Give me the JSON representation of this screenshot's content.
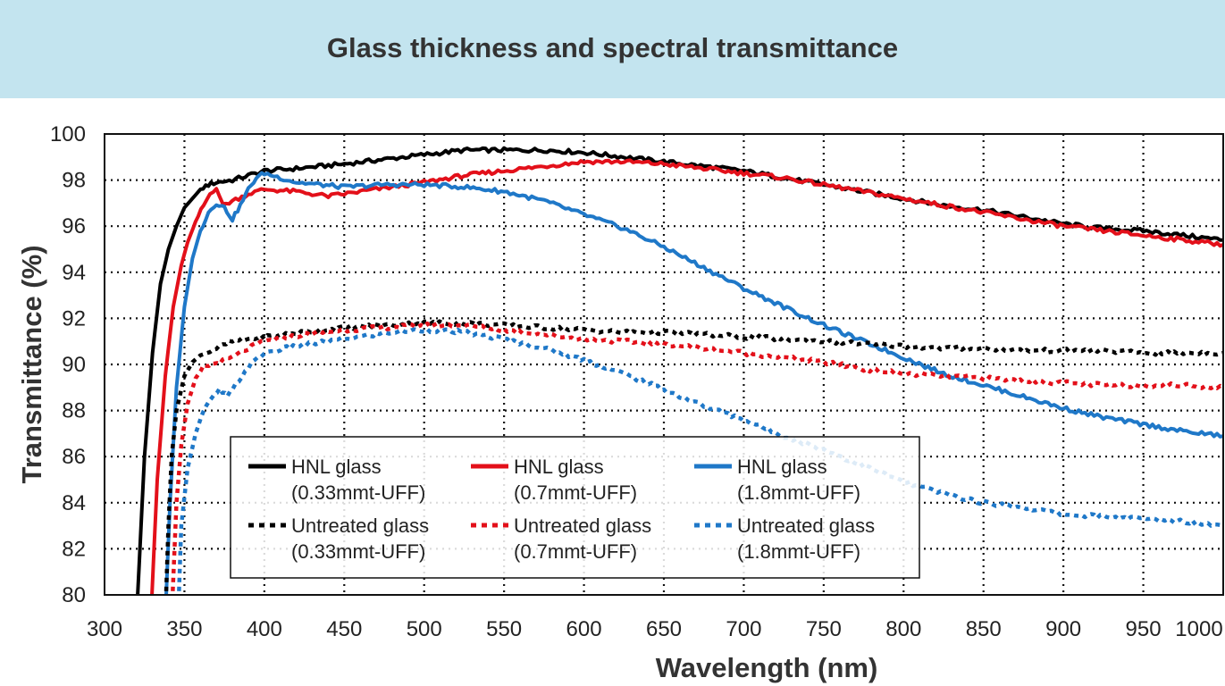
{
  "header": {
    "title": "Glass thickness and spectral transmittance"
  },
  "chart_data": {
    "type": "line",
    "title": "Glass thickness and spectral transmittance",
    "xlabel": "Wavelength (nm)",
    "ylabel": "Transmittance (%)",
    "xlim": [
      300,
      1000
    ],
    "ylim": [
      80,
      100
    ],
    "x_ticks": [
      300,
      350,
      400,
      450,
      500,
      550,
      600,
      650,
      700,
      750,
      800,
      850,
      900,
      950,
      1000
    ],
    "y_ticks": [
      80,
      82,
      84,
      86,
      88,
      90,
      92,
      94,
      96,
      98,
      100
    ],
    "grid": true,
    "legend_position": "lower-center",
    "series": [
      {
        "name": "HNL glass",
        "name2": "(0.33mmt-UFF)",
        "color": "#000000",
        "style": "solid",
        "points": [
          [
            320,
            79
          ],
          [
            325,
            86
          ],
          [
            330,
            90.5
          ],
          [
            335,
            93.5
          ],
          [
            340,
            95
          ],
          [
            345,
            96
          ],
          [
            350,
            96.8
          ],
          [
            355,
            97.2
          ],
          [
            360,
            97.6
          ],
          [
            365,
            97.8
          ],
          [
            370,
            97.9
          ],
          [
            380,
            98
          ],
          [
            390,
            98.2
          ],
          [
            400,
            98.4
          ],
          [
            420,
            98.5
          ],
          [
            450,
            98.7
          ],
          [
            475,
            98.9
          ],
          [
            500,
            99.1
          ],
          [
            525,
            99.3
          ],
          [
            550,
            99.3
          ],
          [
            575,
            99.3
          ],
          [
            600,
            99.2
          ],
          [
            625,
            99
          ],
          [
            650,
            98.8
          ],
          [
            675,
            98.6
          ],
          [
            700,
            98.4
          ],
          [
            725,
            98.1
          ],
          [
            750,
            97.8
          ],
          [
            775,
            97.5
          ],
          [
            800,
            97.2
          ],
          [
            825,
            96.9
          ],
          [
            850,
            96.7
          ],
          [
            875,
            96.4
          ],
          [
            900,
            96.1
          ],
          [
            925,
            95.9
          ],
          [
            950,
            95.8
          ],
          [
            975,
            95.6
          ],
          [
            1000,
            95.4
          ]
        ]
      },
      {
        "name": "HNL glass",
        "name2": "(0.7mmt-UFF)",
        "color": "#e3101a",
        "style": "solid",
        "points": [
          [
            329,
            79
          ],
          [
            333,
            85
          ],
          [
            338,
            89.5
          ],
          [
            343,
            92.5
          ],
          [
            348,
            94.3
          ],
          [
            352,
            95.3
          ],
          [
            357,
            96.2
          ],
          [
            362,
            96.9
          ],
          [
            366,
            97.4
          ],
          [
            370,
            97.7
          ],
          [
            374,
            96.9
          ],
          [
            380,
            97.1
          ],
          [
            390,
            97.4
          ],
          [
            400,
            97.6
          ],
          [
            420,
            97.5
          ],
          [
            440,
            97.3
          ],
          [
            460,
            97.5
          ],
          [
            480,
            97.7
          ],
          [
            500,
            97.9
          ],
          [
            525,
            98.2
          ],
          [
            550,
            98.4
          ],
          [
            575,
            98.6
          ],
          [
            600,
            98.8
          ],
          [
            625,
            98.8
          ],
          [
            650,
            98.7
          ],
          [
            675,
            98.5
          ],
          [
            700,
            98.3
          ],
          [
            725,
            98.1
          ],
          [
            750,
            97.8
          ],
          [
            775,
            97.5
          ],
          [
            800,
            97.2
          ],
          [
            825,
            96.9
          ],
          [
            850,
            96.6
          ],
          [
            875,
            96.3
          ],
          [
            900,
            96
          ],
          [
            925,
            95.8
          ],
          [
            950,
            95.6
          ],
          [
            975,
            95.4
          ],
          [
            1000,
            95.2
          ]
        ]
      },
      {
        "name": "HNL glass",
        "name2": "(1.8mmt-UFF)",
        "color": "#1f78c8",
        "style": "solid",
        "points": [
          [
            338,
            79
          ],
          [
            341,
            84
          ],
          [
            345,
            89
          ],
          [
            350,
            92.5
          ],
          [
            355,
            94.6
          ],
          [
            360,
            95.8
          ],
          [
            365,
            96.6
          ],
          [
            370,
            97
          ],
          [
            375,
            96.8
          ],
          [
            380,
            96.3
          ],
          [
            385,
            96.9
          ],
          [
            390,
            97.6
          ],
          [
            395,
            98.1
          ],
          [
            400,
            98.3
          ],
          [
            410,
            98.1
          ],
          [
            420,
            97.9
          ],
          [
            435,
            97.8
          ],
          [
            450,
            97.7
          ],
          [
            475,
            97.8
          ],
          [
            500,
            97.8
          ],
          [
            525,
            97.7
          ],
          [
            550,
            97.5
          ],
          [
            575,
            97.1
          ],
          [
            600,
            96.5
          ],
          [
            625,
            95.9
          ],
          [
            650,
            95.1
          ],
          [
            675,
            94.2
          ],
          [
            700,
            93.3
          ],
          [
            725,
            92.5
          ],
          [
            750,
            91.7
          ],
          [
            775,
            91
          ],
          [
            800,
            90.3
          ],
          [
            825,
            89.6
          ],
          [
            850,
            89.1
          ],
          [
            875,
            88.6
          ],
          [
            900,
            88.1
          ],
          [
            925,
            87.7
          ],
          [
            950,
            87.4
          ],
          [
            975,
            87.1
          ],
          [
            1000,
            86.9
          ]
        ]
      },
      {
        "name": "Untreated glass",
        "name2": "(0.33mmt-UFF)",
        "color": "#000000",
        "style": "dotted",
        "points": [
          [
            338,
            79
          ],
          [
            340,
            83
          ],
          [
            342,
            86
          ],
          [
            345,
            88
          ],
          [
            350,
            89.5
          ],
          [
            355,
            90.1
          ],
          [
            360,
            90.4
          ],
          [
            370,
            90.7
          ],
          [
            380,
            91
          ],
          [
            390,
            91.1
          ],
          [
            400,
            91.2
          ],
          [
            425,
            91.4
          ],
          [
            450,
            91.6
          ],
          [
            475,
            91.7
          ],
          [
            500,
            91.8
          ],
          [
            525,
            91.8
          ],
          [
            550,
            91.7
          ],
          [
            575,
            91.6
          ],
          [
            600,
            91.5
          ],
          [
            625,
            91.4
          ],
          [
            650,
            91.4
          ],
          [
            675,
            91.3
          ],
          [
            700,
            91.2
          ],
          [
            725,
            91.1
          ],
          [
            750,
            91
          ],
          [
            775,
            90.9
          ],
          [
            800,
            90.8
          ],
          [
            825,
            90.7
          ],
          [
            850,
            90.7
          ],
          [
            875,
            90.6
          ],
          [
            900,
            90.6
          ],
          [
            925,
            90.6
          ],
          [
            950,
            90.5
          ],
          [
            975,
            90.5
          ],
          [
            1000,
            90.5
          ]
        ]
      },
      {
        "name": "Untreated glass",
        "name2": "(0.7mmt-UFF)",
        "color": "#e3101a",
        "style": "dotted",
        "points": [
          [
            342,
            79
          ],
          [
            345,
            84
          ],
          [
            348,
            86.5
          ],
          [
            352,
            88.3
          ],
          [
            357,
            89.4
          ],
          [
            362,
            89.9
          ],
          [
            367,
            90
          ],
          [
            372,
            90.1
          ],
          [
            380,
            90.3
          ],
          [
            390,
            90.7
          ],
          [
            400,
            91
          ],
          [
            425,
            91.3
          ],
          [
            450,
            91.5
          ],
          [
            475,
            91.6
          ],
          [
            500,
            91.7
          ],
          [
            525,
            91.7
          ],
          [
            550,
            91.5
          ],
          [
            575,
            91.3
          ],
          [
            600,
            91.1
          ],
          [
            625,
            91
          ],
          [
            650,
            90.9
          ],
          [
            675,
            90.7
          ],
          [
            700,
            90.5
          ],
          [
            725,
            90.3
          ],
          [
            750,
            90.1
          ],
          [
            775,
            89.8
          ],
          [
            800,
            89.6
          ],
          [
            825,
            89.5
          ],
          [
            850,
            89.4
          ],
          [
            875,
            89.3
          ],
          [
            900,
            89.2
          ],
          [
            925,
            89.1
          ],
          [
            950,
            89.1
          ],
          [
            975,
            89.1
          ],
          [
            1000,
            89
          ]
        ]
      },
      {
        "name": "Untreated glass",
        "name2": "(1.8mmt-UFF)",
        "color": "#1f78c8",
        "style": "dotted",
        "points": [
          [
            346,
            79
          ],
          [
            348,
            83
          ],
          [
            352,
            85.5
          ],
          [
            357,
            87
          ],
          [
            362,
            88
          ],
          [
            367,
            88.5
          ],
          [
            372,
            88.9
          ],
          [
            377,
            88.6
          ],
          [
            382,
            89.1
          ],
          [
            390,
            89.9
          ],
          [
            400,
            90.5
          ],
          [
            420,
            90.8
          ],
          [
            440,
            91
          ],
          [
            460,
            91.2
          ],
          [
            480,
            91.4
          ],
          [
            500,
            91.5
          ],
          [
            525,
            91.4
          ],
          [
            550,
            91.1
          ],
          [
            575,
            90.7
          ],
          [
            600,
            90.2
          ],
          [
            625,
            89.6
          ],
          [
            650,
            88.9
          ],
          [
            675,
            88.2
          ],
          [
            700,
            87.6
          ],
          [
            725,
            86.9
          ],
          [
            750,
            86.3
          ],
          [
            775,
            85.6
          ],
          [
            800,
            84.9
          ],
          [
            825,
            84.4
          ],
          [
            850,
            84
          ],
          [
            875,
            83.8
          ],
          [
            900,
            83.5
          ],
          [
            925,
            83.4
          ],
          [
            950,
            83.3
          ],
          [
            975,
            83.2
          ],
          [
            1000,
            83
          ]
        ]
      }
    ]
  }
}
